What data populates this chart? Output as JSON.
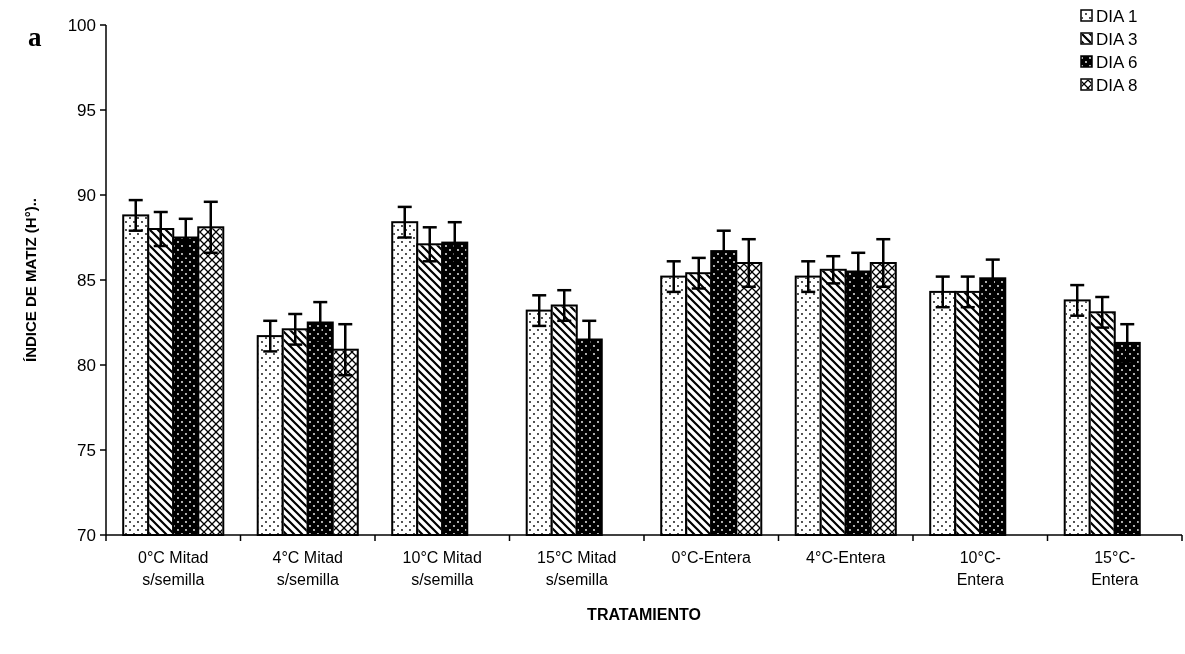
{
  "chart_data": {
    "type": "bar",
    "title": "a",
    "xlabel": "TRATAMIENTO",
    "ylabel": "ÍNDICE DE MATIZ (H°)..",
    "categories": [
      "0°C Mitad\ns/semilla",
      "4°C Mitad\ns/semilla",
      "10°C Mitad\ns/semilla",
      "15°C Mitad\ns/semilla",
      "0°C-Entera",
      "4°C-Entera",
      "10°C-\nEntera",
      "15°C-\nEntera"
    ],
    "series": [
      {
        "name": "DIA 1",
        "color": "#ffffff",
        "values": [
          88.8,
          81.7,
          88.4,
          83.2,
          85.2,
          85.2,
          84.3,
          83.8
        ],
        "errors": [
          0.9,
          0.9,
          0.9,
          0.9,
          0.9,
          0.9,
          0.9,
          0.9
        ]
      },
      {
        "name": "DIA 3",
        "color": "#ffffff",
        "values": [
          88.0,
          82.1,
          87.1,
          83.5,
          85.4,
          85.6,
          84.3,
          83.1
        ],
        "errors": [
          1.0,
          0.9,
          1.0,
          0.9,
          0.9,
          0.8,
          0.9,
          0.9
        ]
      },
      {
        "name": "DIA 6",
        "color": "#000000",
        "values": [
          87.5,
          82.5,
          87.2,
          81.5,
          86.7,
          85.5,
          85.1,
          81.3
        ],
        "errors": [
          1.1,
          1.2,
          1.2,
          1.1,
          1.2,
          1.1,
          1.1,
          1.1
        ]
      },
      {
        "name": "DIA 8",
        "color": "#ffffff",
        "values": [
          88.1,
          80.9,
          null,
          null,
          86.0,
          86.0,
          null,
          null
        ],
        "errors": [
          1.5,
          1.5,
          null,
          null,
          1.4,
          1.4,
          null,
          null
        ]
      }
    ],
    "ylim": [
      70,
      100
    ],
    "yticks": [
      70,
      75,
      80,
      85,
      90,
      95,
      100
    ],
    "legend": "top right"
  }
}
